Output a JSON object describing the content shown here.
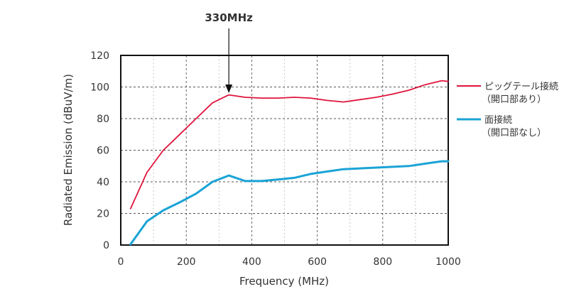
{
  "chart_data": {
    "type": "line",
    "xlabel": "Frequency (MHz)",
    "ylabel": "Radiated Emission (dBuV/m)",
    "xlim": [
      0,
      1000
    ],
    "ylim": [
      0,
      120
    ],
    "x_ticks": [
      "0",
      "200",
      "400",
      "600",
      "800",
      "1000"
    ],
    "y_ticks": [
      "0",
      "20",
      "40",
      "60",
      "80",
      "100",
      "120"
    ],
    "grid": true,
    "legend_position": "right",
    "annotation": {
      "text": "330MHz",
      "x": 330
    },
    "series": [
      {
        "name_line1": "ピッグテール接続",
        "name_line2": "（開口部あり）",
        "color": "#e0143c",
        "points": [
          [
            30,
            23
          ],
          [
            80,
            46
          ],
          [
            130,
            60
          ],
          [
            180,
            70
          ],
          [
            230,
            80
          ],
          [
            280,
            90
          ],
          [
            330,
            95
          ],
          [
            380,
            93.5
          ],
          [
            430,
            93
          ],
          [
            480,
            93
          ],
          [
            530,
            93.5
          ],
          [
            580,
            93
          ],
          [
            630,
            91.5
          ],
          [
            680,
            90.5
          ],
          [
            730,
            92
          ],
          [
            780,
            93.5
          ],
          [
            830,
            95.5
          ],
          [
            880,
            98
          ],
          [
            930,
            101.5
          ],
          [
            980,
            104
          ],
          [
            1000,
            103.5
          ]
        ]
      },
      {
        "name_line1": "面接続",
        "name_line2": "（開口部なし）",
        "color": "#1aa3d6",
        "points": [
          [
            30,
            0.5
          ],
          [
            80,
            15
          ],
          [
            130,
            22
          ],
          [
            180,
            27
          ],
          [
            230,
            32.5
          ],
          [
            280,
            40
          ],
          [
            330,
            44
          ],
          [
            380,
            40.5
          ],
          [
            430,
            40.5
          ],
          [
            480,
            41.5
          ],
          [
            530,
            42.5
          ],
          [
            580,
            45
          ],
          [
            630,
            46.5
          ],
          [
            680,
            48
          ],
          [
            730,
            48.5
          ],
          [
            780,
            49
          ],
          [
            830,
            49.5
          ],
          [
            880,
            50
          ],
          [
            930,
            51.5
          ],
          [
            980,
            53
          ],
          [
            1000,
            53
          ]
        ]
      }
    ]
  }
}
